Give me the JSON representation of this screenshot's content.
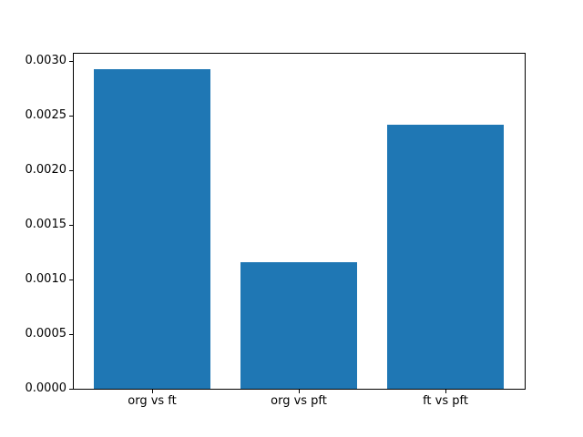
{
  "chart_data": {
    "type": "bar",
    "title": "",
    "xlabel": "",
    "ylabel": "",
    "categories": [
      "org vs ft",
      "org vs pft",
      "ft vs pft"
    ],
    "values": [
      0.00293,
      0.00116,
      0.00242
    ],
    "bar_color": "#1f77b4",
    "bar_width": 0.8,
    "xlim": [
      -0.54,
      2.54
    ],
    "ylim": [
      0,
      0.003077
    ],
    "yticks": [
      0,
      0.0005,
      0.001,
      0.0015,
      0.002,
      0.0025,
      0.003
    ],
    "ytick_labels": [
      "0.0000",
      "0.0005",
      "0.0010",
      "0.0015",
      "0.0020",
      "0.0025",
      "0.0030"
    ],
    "grid": false,
    "legend": null,
    "frame_color": "#000000",
    "background_color": "#ffffff"
  }
}
